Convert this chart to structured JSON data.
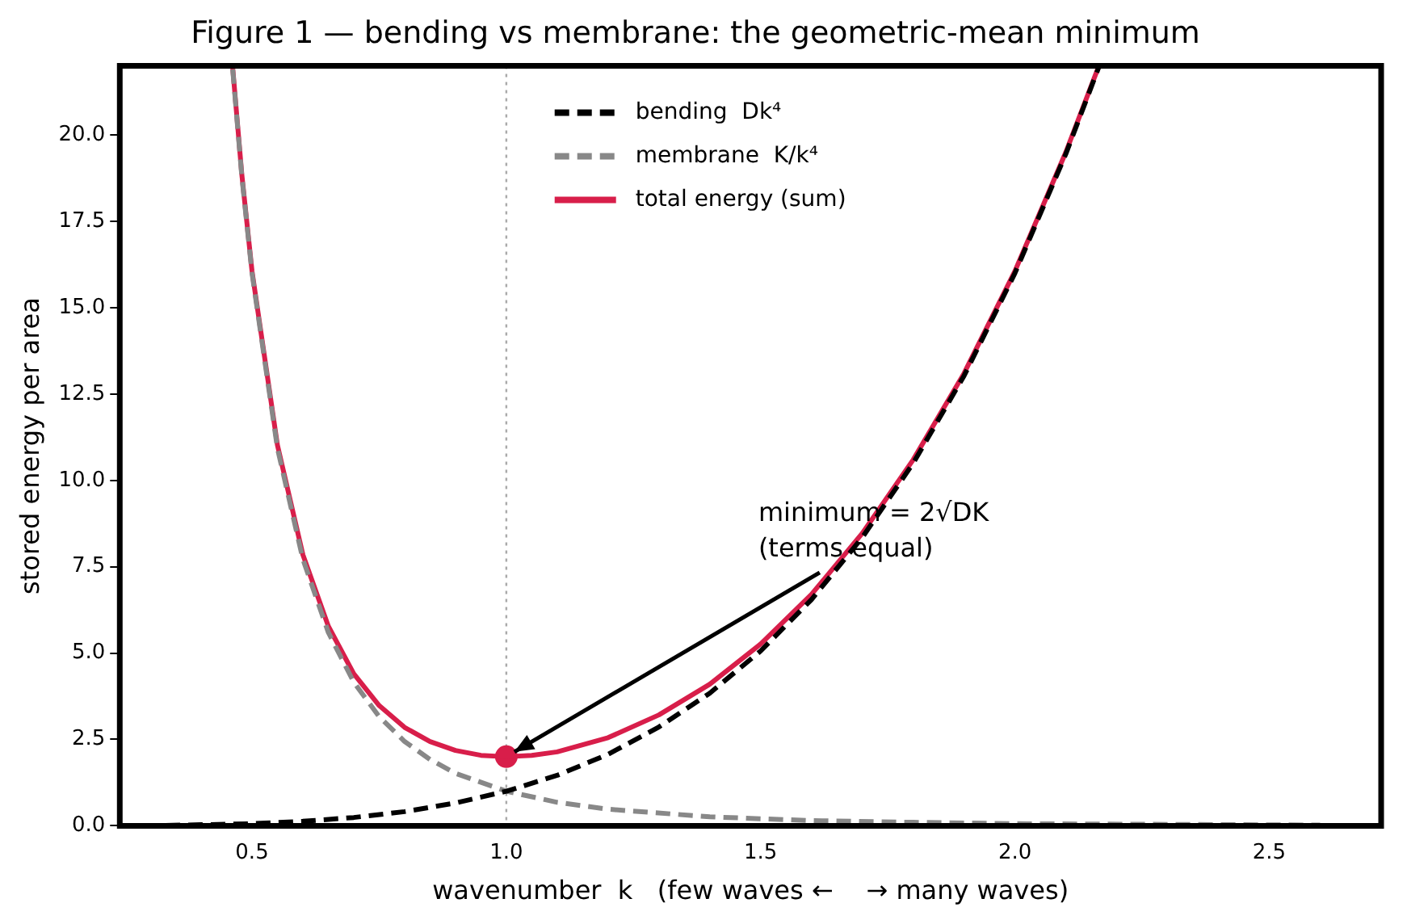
{
  "chart_data": {
    "type": "line",
    "title": "Figure 1 — bending vs membrane: the geometric-mean minimum",
    "xlabel": "wavenumber  k   (few waves ←    → many waves)",
    "ylabel": "stored energy per area",
    "xlim": [
      0.24,
      2.72
    ],
    "ylim": [
      0,
      22
    ],
    "xticks": [
      0.5,
      {
        "value": 1,
        "label": "1.0"
      },
      1.5,
      {
        "value": 2,
        "label": "2.0"
      },
      2.5
    ],
    "yticks": [
      {
        "value": 0,
        "label": "0.0"
      },
      2.5,
      {
        "value": 5,
        "label": "5.0"
      },
      7.5,
      {
        "value": 10,
        "label": "10.0"
      },
      12.5,
      {
        "value": 15,
        "label": "15.0"
      },
      17.5,
      {
        "value": 20,
        "label": "20.0"
      }
    ],
    "grid": false,
    "legend": "top",
    "marker": "none",
    "ref_lines": [
      {
        "axis": "x",
        "value": 1,
        "color": "#aaaaaa",
        "line_style": "dotted"
      }
    ],
    "annotations": [
      {
        "text": "minimum = 2√DK\n(terms equal)",
        "x": 1,
        "y": 2
      }
    ],
    "series": [
      {
        "name": "bending  Dk⁴",
        "color": "#000000",
        "line_style": "dashed",
        "x": [
          0.33,
          0.4,
          0.5,
          0.6,
          0.7,
          0.8,
          0.9,
          1.0,
          1.1,
          1.2,
          1.3,
          1.4,
          1.5,
          1.6,
          1.7,
          1.8,
          1.9,
          2.0,
          2.1,
          2.165
        ],
        "values": [
          0.01,
          0.03,
          0.06,
          0.13,
          0.24,
          0.41,
          0.66,
          1,
          1.46,
          2.07,
          2.86,
          3.84,
          5.06,
          6.55,
          8.35,
          10.5,
          13.03,
          16,
          19.45,
          21.97
        ]
      },
      {
        "name": "membrane  K/k⁴",
        "color": "#888888",
        "line_style": "dashed",
        "x": [
          0.462,
          0.48,
          0.5,
          0.55,
          0.6,
          0.65,
          0.7,
          0.75,
          0.8,
          0.85,
          0.9,
          1.0,
          1.1,
          1.2,
          1.4,
          1.6,
          1.8,
          2.0,
          2.3,
          2.6
        ],
        "values": [
          21.9,
          18.8,
          16,
          10.93,
          7.72,
          5.6,
          4.16,
          3.16,
          2.44,
          1.92,
          1.52,
          1,
          0.68,
          0.48,
          0.26,
          0.15,
          0.1,
          0.06,
          0.04,
          0.02
        ]
      },
      {
        "name": "total energy (sum)",
        "color": "#d81e4a",
        "line_style": "solid",
        "x": [
          0.462,
          0.48,
          0.5,
          0.55,
          0.6,
          0.65,
          0.7,
          0.75,
          0.8,
          0.85,
          0.9,
          0.95,
          1.0,
          1.05,
          1.1,
          1.2,
          1.3,
          1.4,
          1.5,
          1.6,
          1.7,
          1.8,
          1.9,
          2.0,
          2.1,
          2.165
        ],
        "values": [
          21.95,
          18.85,
          16.06,
          11.02,
          7.85,
          5.78,
          4.4,
          3.48,
          2.85,
          2.44,
          2.18,
          2.04,
          2,
          2.04,
          2.14,
          2.55,
          3.21,
          4.1,
          5.26,
          6.7,
          8.47,
          10.6,
          13.1,
          16.06,
          19.5,
          22.0
        ]
      },
      {
        "type": "scatter",
        "color": "#d81e4a",
        "marker": "circle",
        "x": [
          1
        ],
        "values": [
          2
        ]
      }
    ]
  }
}
